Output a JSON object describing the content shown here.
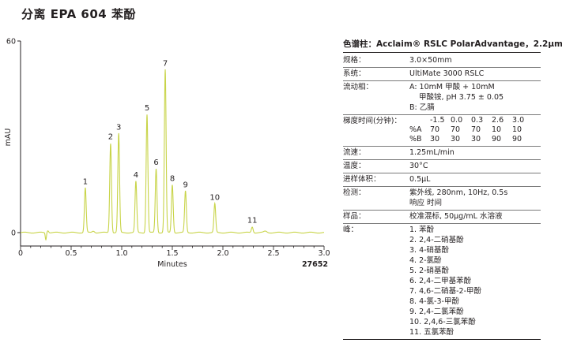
{
  "title": "分离 EPA 604 苯酚",
  "chart_data": {
    "type": "line",
    "xlabel": "Minutes",
    "ylabel": "mAU",
    "xlim": [
      0,
      3.0
    ],
    "ylim": [
      -3,
      60
    ],
    "xticks": [
      "0",
      "0.5",
      "1.0",
      "1.5",
      "2.0",
      "2.5",
      "3.0"
    ],
    "yticks": [
      "0",
      "60"
    ],
    "line_color": "#c8d448",
    "annotation": "27652",
    "series": [
      {
        "peaks": [
          {
            "label": "1",
            "rt": 0.64,
            "height": 14.0
          },
          {
            "label": "2",
            "rt": 0.89,
            "height": 28.0
          },
          {
            "label": "3",
            "rt": 0.97,
            "height": 31.0
          },
          {
            "label": "4",
            "rt": 1.14,
            "height": 16.0
          },
          {
            "label": "5",
            "rt": 1.25,
            "height": 37.0
          },
          {
            "label": "6",
            "rt": 1.34,
            "height": 20.0
          },
          {
            "label": "7",
            "rt": 1.43,
            "height": 51.0
          },
          {
            "label": "8",
            "rt": 1.5,
            "height": 15.0
          },
          {
            "label": "9",
            "rt": 1.63,
            "height": 13.0
          },
          {
            "label": "10",
            "rt": 1.92,
            "height": 9.0
          },
          {
            "label": "11",
            "rt": 2.29,
            "height": 1.8
          }
        ]
      }
    ]
  },
  "info": {
    "title": "色谱柱：Acclaim® RSLC PolarAdvantage，2.2μm",
    "rows": [
      {
        "label": "规格：",
        "values": [
          "3.0×50mm"
        ]
      },
      {
        "label": "系统：",
        "values": [
          "UltiMate 3000 RSLC"
        ]
      },
      {
        "label": "流动相：",
        "values": [
          "A: 10mM 甲酸 + 10mM",
          "   甲酸铵, pH 3.75 ± 0.05",
          "B: 乙腈"
        ]
      },
      {
        "label": "梯度时间(分钟)：",
        "grad": {
          "time": [
            "-1.5",
            "0.0",
            "0.3",
            "2.6",
            "3.0"
          ],
          "A_label": "%A",
          "A": [
            "70",
            "70",
            "70",
            "10",
            "10"
          ],
          "B_label": "%B",
          "B": [
            "30",
            "30",
            "30",
            "90",
            "90"
          ]
        }
      },
      {
        "label": "流速：",
        "values": [
          "1.25mL/min"
        ]
      },
      {
        "label": "温度：",
        "values": [
          "30°C"
        ]
      },
      {
        "label": "进样体积：",
        "values": [
          "0.5μL"
        ]
      },
      {
        "label": "检测：",
        "values": [
          "紫外线, 280nm, 10Hz, 0.5s",
          "响应 时间"
        ]
      },
      {
        "label": "样品：",
        "values": [
          "校准混标, 50μg/mL 水溶液"
        ]
      },
      {
        "label": "峰：",
        "values": [
          "1. 苯酚",
          "2. 2,4-二硝基酚",
          "3. 4-硝基酚",
          "4. 2-氯酚",
          "5. 2-硝基酚",
          "6. 2,4-二甲基苯酚",
          "7. 4,6-二硝基-2-甲酚",
          "8. 4-氯-3-甲酚",
          "9. 2,4-二氯苯酚",
          "10. 2,4,6-三氯苯酚",
          "11. 五氯苯酚"
        ]
      }
    ]
  }
}
